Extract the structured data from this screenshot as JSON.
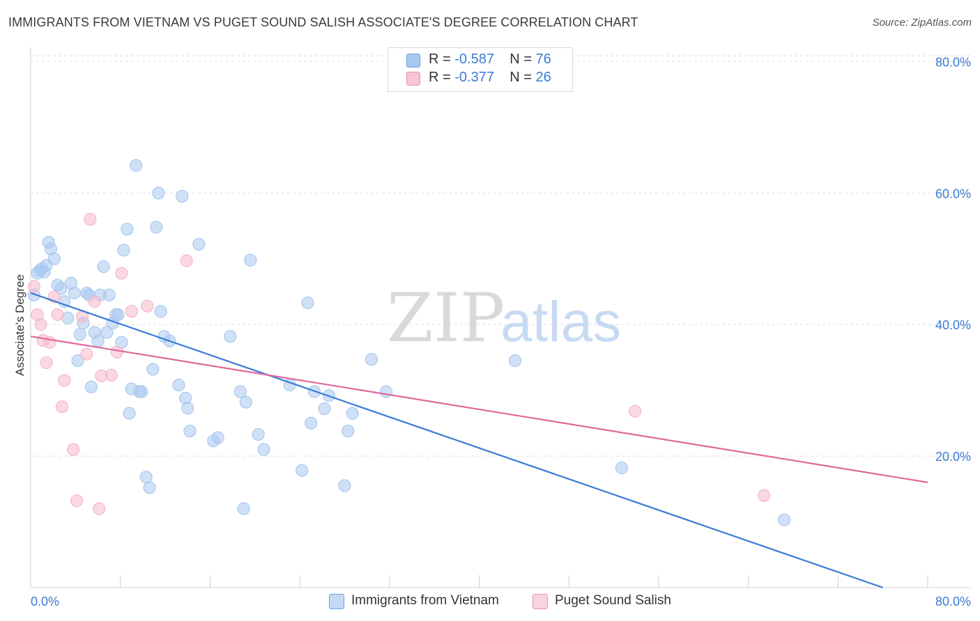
{
  "title": "IMMIGRANTS FROM VIETNAM VS PUGET SOUND SALISH ASSOCIATE'S DEGREE CORRELATION CHART",
  "source": "Source: ZipAtlas.com",
  "watermark": {
    "zip": "ZIP",
    "atlas": "atlas"
  },
  "legend": {
    "rows": [
      {
        "r_label": "R = ",
        "r_value": "-0.587",
        "n_label": "N = ",
        "n_value": "76",
        "color": "#a9c8f0"
      },
      {
        "r_label": "R = ",
        "r_value": "-0.377",
        "n_label": "N = ",
        "n_value": "26",
        "color": "#f5b8cb"
      }
    ]
  },
  "chart_data": {
    "type": "scatter",
    "title": "IMMIGRANTS FROM VIETNAM VS PUGET SOUND SALISH ASSOCIATE'S DEGREE CORRELATION CHART",
    "xlabel": "",
    "ylabel": "Associate's Degree",
    "xlim": [
      0,
      80
    ],
    "ylim": [
      0,
      83
    ],
    "x_tick_labels": [
      "0.0%",
      "80.0%"
    ],
    "y_ticks": [
      20,
      40,
      60,
      80
    ],
    "y_tick_labels": [
      "20.0%",
      "40.0%",
      "60.0%",
      "80.0%"
    ],
    "grid": true,
    "legend_position": "top-center",
    "series": [
      {
        "name": "Immigrants from Vietnam",
        "color": "#3a7bd5",
        "fill": "#a9c8f0",
        "trend": {
          "x": [
            0,
            76
          ],
          "y": [
            44.8,
            0
          ]
        },
        "points": [
          [
            0.3,
            44.5
          ],
          [
            0.6,
            47.8
          ],
          [
            0.8,
            48.2
          ],
          [
            1.0,
            48.5
          ],
          [
            1.2,
            48.0
          ],
          [
            1.4,
            49.0
          ],
          [
            1.6,
            52.5
          ],
          [
            1.8,
            51.5
          ],
          [
            2.1,
            50.0
          ],
          [
            2.4,
            46.0
          ],
          [
            2.7,
            45.5
          ],
          [
            3.0,
            43.5
          ],
          [
            3.3,
            41.0
          ],
          [
            3.6,
            46.3
          ],
          [
            3.9,
            44.8
          ],
          [
            4.2,
            34.5
          ],
          [
            4.4,
            38.5
          ],
          [
            4.7,
            40.2
          ],
          [
            5.0,
            44.8
          ],
          [
            5.2,
            44.5
          ],
          [
            5.4,
            30.5
          ],
          [
            5.7,
            38.8
          ],
          [
            6.0,
            37.5
          ],
          [
            6.2,
            44.5
          ],
          [
            6.5,
            48.8
          ],
          [
            6.8,
            38.8
          ],
          [
            7.0,
            44.5
          ],
          [
            7.3,
            40.2
          ],
          [
            7.6,
            41.5
          ],
          [
            7.8,
            41.5
          ],
          [
            8.1,
            37.3
          ],
          [
            8.3,
            51.3
          ],
          [
            8.6,
            54.5
          ],
          [
            8.8,
            26.5
          ],
          [
            9.0,
            30.2
          ],
          [
            9.4,
            64.2
          ],
          [
            9.7,
            29.8
          ],
          [
            9.9,
            29.8
          ],
          [
            10.3,
            16.8
          ],
          [
            10.6,
            15.2
          ],
          [
            10.9,
            33.2
          ],
          [
            11.2,
            54.8
          ],
          [
            11.4,
            60.0
          ],
          [
            11.6,
            42.0
          ],
          [
            11.9,
            38.2
          ],
          [
            12.4,
            37.5
          ],
          [
            13.2,
            30.8
          ],
          [
            13.5,
            59.5
          ],
          [
            13.8,
            28.8
          ],
          [
            14.0,
            27.3
          ],
          [
            14.2,
            23.8
          ],
          [
            15.0,
            52.2
          ],
          [
            16.3,
            22.3
          ],
          [
            16.7,
            22.8
          ],
          [
            17.8,
            38.2
          ],
          [
            18.7,
            29.8
          ],
          [
            19.0,
            12.0
          ],
          [
            19.2,
            28.2
          ],
          [
            19.6,
            49.8
          ],
          [
            20.3,
            23.3
          ],
          [
            20.8,
            21.0
          ],
          [
            23.1,
            30.8
          ],
          [
            24.2,
            17.8
          ],
          [
            24.7,
            43.3
          ],
          [
            25.0,
            25.0
          ],
          [
            25.3,
            29.8
          ],
          [
            26.2,
            27.2
          ],
          [
            26.6,
            29.2
          ],
          [
            28.0,
            15.5
          ],
          [
            28.3,
            23.8
          ],
          [
            28.7,
            26.5
          ],
          [
            30.4,
            34.7
          ],
          [
            31.7,
            29.8
          ],
          [
            43.2,
            34.5
          ],
          [
            52.7,
            18.2
          ],
          [
            67.2,
            10.3
          ]
        ]
      },
      {
        "name": "Puget Sound Salish",
        "color": "#e0689a",
        "fill": "#f5b8cb",
        "trend": {
          "x": [
            0,
            80
          ],
          "y": [
            38.2,
            16.0
          ]
        },
        "points": [
          [
            0.3,
            45.8
          ],
          [
            0.6,
            41.5
          ],
          [
            0.9,
            40.0
          ],
          [
            1.1,
            37.6
          ],
          [
            1.4,
            34.2
          ],
          [
            1.7,
            37.3
          ],
          [
            2.1,
            44.2
          ],
          [
            2.4,
            41.5
          ],
          [
            2.8,
            27.5
          ],
          [
            3.0,
            31.5
          ],
          [
            3.8,
            21.0
          ],
          [
            4.1,
            13.2
          ],
          [
            4.6,
            41.2
          ],
          [
            5.0,
            35.5
          ],
          [
            5.3,
            56.0
          ],
          [
            5.7,
            43.5
          ],
          [
            6.1,
            12.0
          ],
          [
            6.3,
            32.2
          ],
          [
            7.2,
            32.3
          ],
          [
            7.7,
            35.8
          ],
          [
            8.1,
            47.8
          ],
          [
            9.0,
            42.0
          ],
          [
            10.4,
            42.8
          ],
          [
            13.9,
            49.7
          ],
          [
            53.9,
            26.8
          ],
          [
            65.4,
            14.0
          ]
        ]
      }
    ]
  }
}
